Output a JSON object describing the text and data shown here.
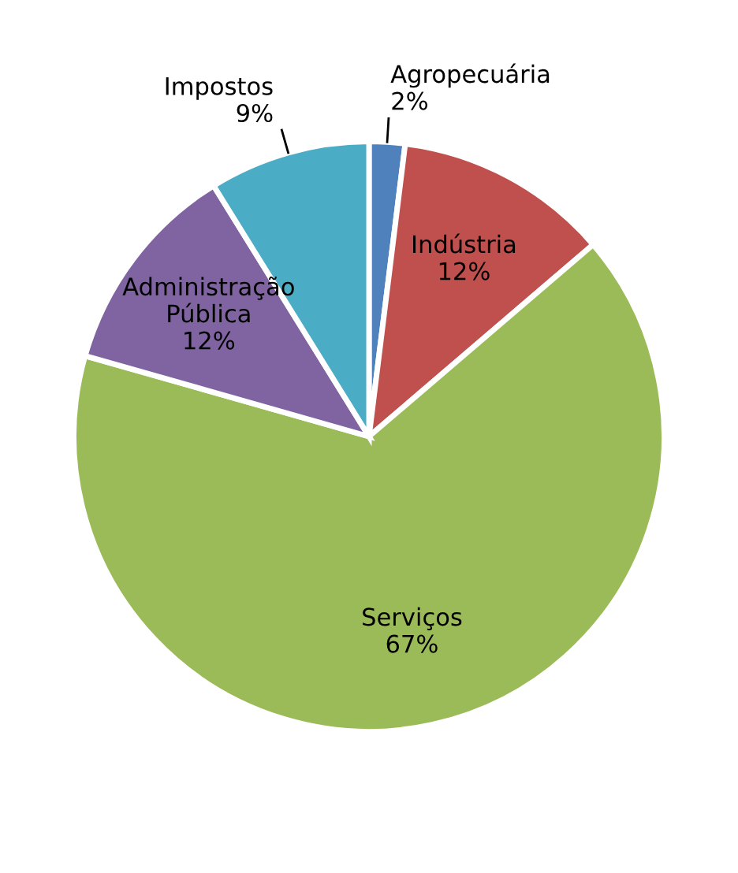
{
  "chart_data": {
    "type": "pie",
    "categories": [
      "Agropecuária",
      "Indústria",
      "Serviços",
      "Administração\nPública",
      "Impostos"
    ],
    "values": [
      2,
      12,
      67,
      12,
      9
    ],
    "colors": [
      "#4f81bd",
      "#c0504d",
      "#9bbb59",
      "#8064a2",
      "#4bacc6"
    ],
    "value_labels": [
      "2%",
      "12%",
      "67%",
      "12%",
      "9%"
    ]
  }
}
